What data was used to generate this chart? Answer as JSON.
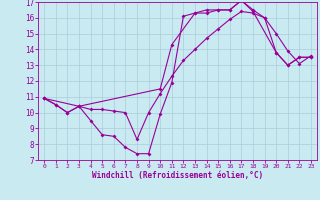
{
  "xlabel": "Windchill (Refroidissement éolien,°C)",
  "background_color": "#c8eaf0",
  "grid_color": "#aaccdd",
  "line_color": "#990099",
  "xlim": [
    -0.5,
    23.5
  ],
  "ylim": [
    7,
    17
  ],
  "yticks": [
    7,
    8,
    9,
    10,
    11,
    12,
    13,
    14,
    15,
    16,
    17
  ],
  "xticks": [
    0,
    1,
    2,
    3,
    4,
    5,
    6,
    7,
    8,
    9,
    10,
    11,
    12,
    13,
    14,
    15,
    16,
    17,
    18,
    19,
    20,
    21,
    22,
    23
  ],
  "series1_x": [
    0,
    1,
    2,
    3,
    4,
    5,
    6,
    7,
    8,
    9,
    10,
    11,
    12,
    13,
    14,
    15,
    16,
    17,
    18,
    19,
    20,
    21,
    22,
    23
  ],
  "series1_y": [
    10.9,
    10.5,
    10.0,
    10.4,
    9.5,
    8.6,
    8.5,
    7.8,
    7.4,
    7.4,
    9.9,
    11.9,
    16.1,
    16.3,
    16.3,
    16.5,
    16.5,
    17.1,
    16.5,
    16.0,
    13.8,
    13.0,
    13.5,
    13.5
  ],
  "series2_x": [
    0,
    1,
    2,
    3,
    4,
    5,
    6,
    7,
    8,
    9,
    10,
    11,
    12,
    13,
    14,
    15,
    16,
    17,
    18,
    19,
    20,
    21,
    22,
    23
  ],
  "series2_y": [
    10.9,
    10.5,
    10.0,
    10.4,
    10.2,
    10.2,
    10.1,
    10.0,
    8.3,
    10.0,
    11.2,
    12.3,
    13.3,
    14.0,
    14.7,
    15.3,
    15.9,
    16.4,
    16.3,
    16.0,
    15.0,
    13.9,
    13.1,
    13.6
  ],
  "series3_x": [
    0,
    3,
    10,
    11,
    13,
    14,
    15,
    16,
    17,
    18,
    20,
    21,
    22,
    23
  ],
  "series3_y": [
    10.9,
    10.4,
    11.5,
    14.3,
    16.3,
    16.5,
    16.5,
    16.5,
    17.1,
    16.4,
    13.8,
    13.0,
    13.5,
    13.5
  ]
}
